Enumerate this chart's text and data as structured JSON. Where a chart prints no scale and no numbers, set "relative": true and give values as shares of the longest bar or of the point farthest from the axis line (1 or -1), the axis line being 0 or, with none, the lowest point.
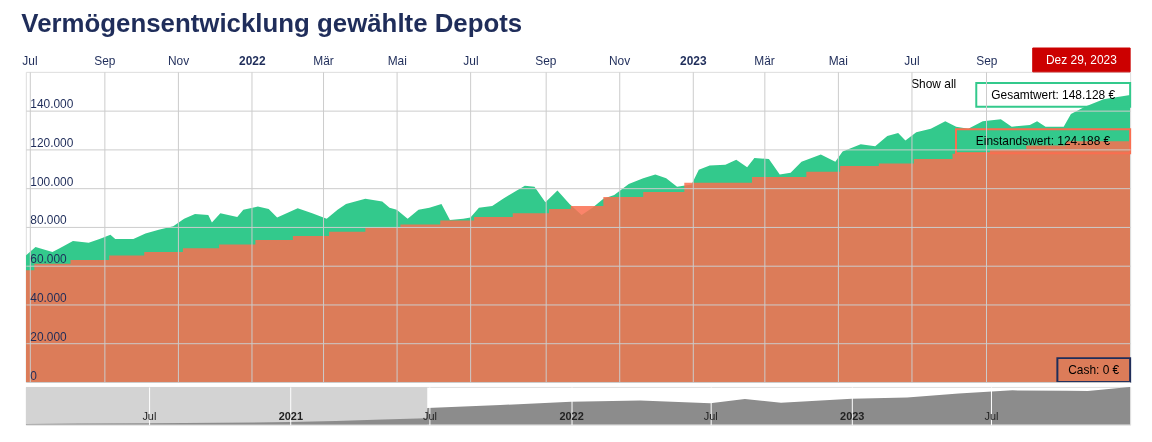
{
  "chart_data": [
    {
      "type": "area",
      "title": "Vermögensentwicklung gewählte Depots",
      "xlim": [
        "2021-06-28",
        "2023-12-29"
      ],
      "xticks": [
        {
          "value": "2021-07-01",
          "label": "Jul"
        },
        {
          "value": "2021-09-01",
          "label": "Sep"
        },
        {
          "value": "2021-11-01",
          "label": "Nov"
        },
        {
          "value": "2022-01-01",
          "label": "2022"
        },
        {
          "value": "2022-03-01",
          "label": "Mär"
        },
        {
          "value": "2022-05-01",
          "label": "Mai"
        },
        {
          "value": "2022-07-01",
          "label": "Jul"
        },
        {
          "value": "2022-09-01",
          "label": "Sep"
        },
        {
          "value": "2022-11-01",
          "label": "Nov"
        },
        {
          "value": "2023-01-01",
          "label": "2023"
        },
        {
          "value": "2023-03-01",
          "label": "Mär"
        },
        {
          "value": "2023-05-01",
          "label": "Mai"
        },
        {
          "value": "2023-07-01",
          "label": "Jul"
        },
        {
          "value": "2023-09-01",
          "label": "Sep"
        }
      ],
      "ylim": [
        0,
        160000
      ],
      "yticks": [
        0,
        {
          "value": 20000,
          "label": "20.000"
        },
        {
          "value": 40000,
          "label": "40.000"
        },
        {
          "value": 60000,
          "label": "60.000"
        },
        {
          "value": 80000,
          "label": "80.000"
        },
        {
          "value": 100000,
          "label": "100.000"
        },
        {
          "value": 120000,
          "label": "120.000"
        },
        {
          "value": 140000,
          "label": "140.000"
        }
      ],
      "grid": true,
      "series": [
        {
          "color": "#33c98c",
          "x": [
            "2021-06-28",
            "2021-07-06",
            "2021-07-20",
            "2021-07-26",
            "2021-08-06",
            "2021-08-19",
            "2021-08-28",
            "2021-09-06",
            "2021-09-10",
            "2021-09-25",
            "2021-10-05",
            "2021-10-16",
            "2021-10-28",
            "2021-11-06",
            "2021-11-15",
            "2021-11-26",
            "2021-11-29",
            "2021-12-06",
            "2021-12-20",
            "2021-12-25",
            "2022-01-06",
            "2022-01-15",
            "2022-01-22",
            "2022-02-08",
            "2022-02-20",
            "2022-03-04",
            "2022-03-13",
            "2022-03-20",
            "2022-04-05",
            "2022-04-19",
            "2022-04-25",
            "2022-05-01",
            "2022-05-10",
            "2022-05-19",
            "2022-05-28",
            "2022-06-07",
            "2022-06-14",
            "2022-06-25",
            "2022-07-01",
            "2022-07-08",
            "2022-07-19",
            "2022-07-28",
            "2022-08-15",
            "2022-08-23",
            "2022-09-01",
            "2022-09-11",
            "2022-09-21",
            "2022-10-01",
            "2022-10-10",
            "2022-10-19",
            "2022-10-28",
            "2022-11-09",
            "2022-11-21",
            "2022-12-01",
            "2022-12-10",
            "2022-12-19",
            "2022-12-31",
            "2023-01-06",
            "2023-01-15",
            "2023-01-28",
            "2023-02-06",
            "2023-02-15",
            "2023-02-21",
            "2023-03-05",
            "2023-03-14",
            "2023-03-23",
            "2023-04-01",
            "2023-04-17",
            "2023-04-29",
            "2023-05-05",
            "2023-05-20",
            "2023-06-01",
            "2023-06-11",
            "2023-06-20",
            "2023-06-26",
            "2023-07-05",
            "2023-07-17",
            "2023-07-29",
            "2023-08-07",
            "2023-08-17",
            "2023-08-29",
            "2023-09-13",
            "2023-09-22",
            "2023-10-07",
            "2023-10-13",
            "2023-10-20",
            "2023-11-04",
            "2023-11-10",
            "2023-11-22",
            "2023-12-07",
            "2023-12-29"
          ],
          "values": [
            65200,
            69600,
            67100,
            69000,
            72800,
            71900,
            73800,
            76000,
            73800,
            73800,
            76600,
            78500,
            80400,
            84200,
            86700,
            86100,
            82300,
            87000,
            85100,
            88900,
            90500,
            89300,
            84800,
            89700,
            87000,
            84200,
            88900,
            91800,
            94600,
            93100,
            89900,
            88900,
            84200,
            88900,
            89900,
            91800,
            83600,
            84200,
            84800,
            89900,
            90800,
            94600,
            101300,
            100700,
            92700,
            98800,
            91800,
            86100,
            89900,
            94600,
            96500,
            102200,
            105100,
            107000,
            105100,
            100700,
            101900,
            109500,
            111700,
            112100,
            114600,
            110800,
            115500,
            115100,
            107000,
            107900,
            113600,
            117400,
            113600,
            118900,
            122700,
            121600,
            126900,
            128400,
            124600,
            128800,
            130700,
            134500,
            131700,
            130700,
            134500,
            135500,
            131700,
            132600,
            134500,
            131700,
            131700,
            138300,
            142100,
            145900,
            148128
          ]
        },
        {
          "color": "#fa6e50",
          "x": [
            "2021-06-28",
            "2021-07-05",
            "2021-07-05",
            "2021-08-04",
            "2021-08-04",
            "2021-09-05",
            "2021-09-05",
            "2021-10-04",
            "2021-10-04",
            "2021-11-05",
            "2021-11-05",
            "2021-12-05",
            "2021-12-05",
            "2022-01-04",
            "2022-01-04",
            "2022-02-04",
            "2022-02-04",
            "2022-03-06",
            "2022-03-06",
            "2022-04-05",
            "2022-04-05",
            "2022-05-04",
            "2022-05-04",
            "2022-06-06",
            "2022-06-06",
            "2022-07-04",
            "2022-07-04",
            "2022-08-05",
            "2022-08-05",
            "2022-09-04",
            "2022-09-04",
            "2022-09-22",
            "2022-09-22",
            "2022-10-19",
            "2022-10-19",
            "2022-11-21",
            "2022-11-21",
            "2022-12-25",
            "2022-12-25",
            "2023-02-19",
            "2023-02-19",
            "2023-04-05",
            "2023-04-05",
            "2023-05-03",
            "2023-05-03",
            "2023-06-04",
            "2023-06-04",
            "2023-07-03",
            "2023-07-03",
            "2023-08-04",
            "2023-08-04",
            "2023-09-04",
            "2023-09-04",
            "2023-10-04",
            "2023-10-04",
            "2023-11-06",
            "2023-11-06",
            "2023-12-29"
          ],
          "values": [
            57600,
            57600,
            61000,
            61000,
            62900,
            62900,
            65200,
            65200,
            67100,
            67100,
            69000,
            69000,
            70900,
            70900,
            73200,
            73200,
            75300,
            75300,
            77500,
            77500,
            79500,
            79500,
            81300,
            81300,
            83300,
            83300,
            85100,
            85100,
            87000,
            87000,
            89300,
            89300,
            90800,
            90800,
            95500,
            95500,
            98000,
            98000,
            102800,
            102800,
            105700,
            105700,
            108500,
            108500,
            111400,
            111400,
            112700,
            112700,
            115100,
            115100,
            117800,
            117800,
            120000,
            120000,
            122000,
            122000,
            124188,
            124188
          ]
        }
      ],
      "annotations": [
        {
          "text": "Gesamtwert: 148.128 €",
          "x": "2023-12-29",
          "y": 148128
        },
        {
          "text": "Einstandswert: 124.188 €",
          "x": "2023-12-29",
          "y": 124188
        },
        {
          "text": "Cash: 0 €",
          "x": "2023-12-29",
          "y": 0
        },
        "Dez 29, 2023",
        "Show all"
      ]
    },
    {
      "type": "area",
      "relative": true,
      "tick_labels": "x",
      "grid": "x",
      "xlim": [
        "2020-01-23",
        "2023-12-29"
      ],
      "xticks": [
        {
          "value": "2020-07-01",
          "label": "Jul"
        },
        {
          "value": "2021-01-01",
          "label": "2021"
        },
        {
          "value": "2021-07-01",
          "label": "Jul"
        },
        {
          "value": "2022-01-01",
          "label": "2022"
        },
        {
          "value": "2022-07-01",
          "label": "Jul"
        },
        {
          "value": "2023-01-01",
          "label": "2023"
        },
        {
          "value": "2023-07-01",
          "label": "Jul"
        }
      ],
      "bands": [
        {
          "axis": "x",
          "from": "2020-01-23",
          "to": "2021-06-28",
          "color": "#d3d3d3"
        }
      ],
      "series": [
        {
          "color": "#8c8c8c",
          "x": [
            "2020-01-23",
            "2020-04-01",
            "2020-07-01",
            "2020-10-01",
            "2021-01-01",
            "2021-03-01",
            "2021-05-01",
            "2021-06-27",
            "2021-06-28",
            "2021-10-01",
            "2022-01-01",
            "2022-04-01",
            "2022-07-01",
            "2022-08-15",
            "2022-10-01",
            "2023-01-01",
            "2023-03-14",
            "2023-05-20",
            "2023-07-29",
            "2023-10-07",
            "2023-11-04",
            "2023-12-29"
          ],
          "values": [
            0.02,
            0.03,
            0.04,
            0.05,
            0.07,
            0.1,
            0.14,
            0.17,
            0.44,
            0.52,
            0.61,
            0.64,
            0.57,
            0.68,
            0.58,
            0.69,
            0.72,
            0.83,
            0.91,
            0.9,
            0.89,
            1
          ]
        }
      ]
    }
  ]
}
